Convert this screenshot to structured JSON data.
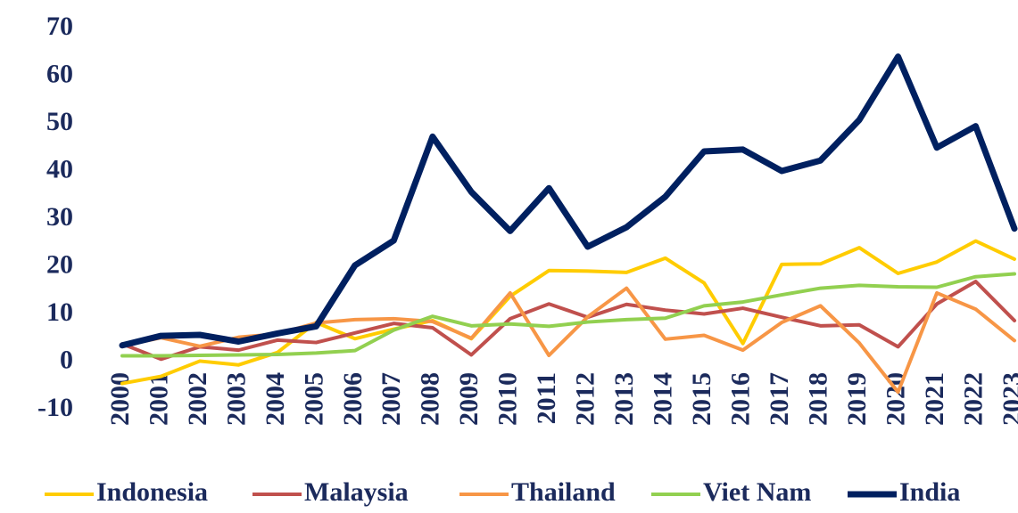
{
  "chart_data": {
    "type": "line",
    "categories": [
      "2000",
      "2001",
      "2002",
      "2003",
      "2004",
      "2005",
      "2006",
      "2007",
      "2008",
      "2009",
      "2010",
      "2011",
      "2012",
      "2013",
      "2014",
      "2015",
      "2016",
      "2017",
      "2018",
      "2019",
      "2020",
      "2021",
      "2022",
      "2023"
    ],
    "series": [
      {
        "name": "Indonesia",
        "color": "#ffcc00",
        "values": [
          -4.5,
          -3,
          0.2,
          -0.6,
          2,
          8.3,
          4.9,
          6.9,
          8.7,
          4.9,
          13.8,
          19.2,
          19.1,
          18.8,
          21.8,
          16.6,
          3.9,
          20.5,
          20.6,
          24,
          18.6,
          21,
          25.4,
          21.6
        ]
      },
      {
        "name": "Malaysia",
        "color": "#c0504d",
        "values": [
          3.8,
          0.6,
          3.2,
          2.5,
          4.6,
          4.1,
          6.1,
          8.1,
          7.2,
          1.5,
          9.1,
          12.2,
          9.4,
          12.1,
          10.9,
          10.1,
          11.3,
          9.4,
          7.6,
          7.8,
          3.2,
          12.2,
          16.9,
          8.7
        ]
      },
      {
        "name": "Thailand",
        "color": "#f79646",
        "values": [
          3.4,
          5.1,
          3.3,
          5.2,
          5.9,
          8.2,
          8.9,
          9.1,
          8.5,
          5,
          14.5,
          1.4,
          9.5,
          15.5,
          4.8,
          5.6,
          2.5,
          8.3,
          11.8,
          4,
          -6.3,
          14.5,
          11.1,
          4.5
        ]
      },
      {
        "name": "Viet Nam",
        "color": "#92d050",
        "values": [
          1.3,
          1.3,
          1.4,
          1.5,
          1.6,
          1.9,
          2.4,
          6.7,
          9.6,
          7.6,
          8,
          7.5,
          8.4,
          8.9,
          9.2,
          11.8,
          12.6,
          14.1,
          15.5,
          16.1,
          15.8,
          15.7,
          17.9,
          18.5
        ]
      },
      {
        "name": "India",
        "color": "#002060",
        "values": [
          3.5,
          5.5,
          5.7,
          4.3,
          6,
          7.5,
          20.3,
          25.5,
          47.3,
          35.7,
          27.5,
          36.5,
          24.2,
          28.3,
          34.7,
          44.2,
          44.6,
          40.1,
          42.3,
          50.8,
          64.1,
          45,
          49.5,
          28
        ]
      }
    ],
    "ylim": [
      -10,
      70
    ],
    "yticks": [
      -10,
      0,
      10,
      20,
      30,
      40,
      50,
      60,
      70
    ],
    "grid": false,
    "legend": "bottom"
  }
}
